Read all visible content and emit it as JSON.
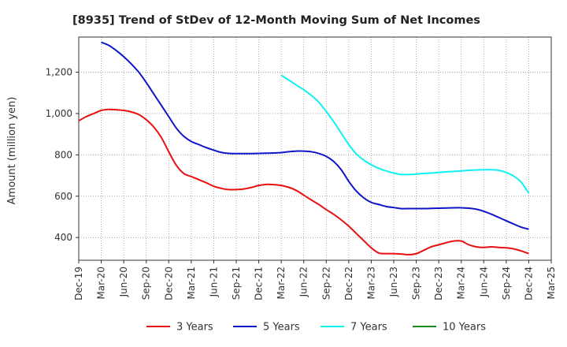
{
  "chart_data": {
    "type": "line",
    "title": "[8935]  Trend of StDev of 12-Month Moving Sum of Net Incomes",
    "xlabel": "",
    "ylabel": "Amount (million yen)",
    "x_ticks": [
      "Dec-19",
      "Mar-20",
      "Jun-20",
      "Sep-20",
      "Dec-20",
      "Mar-21",
      "Jun-21",
      "Sep-21",
      "Dec-21",
      "Mar-22",
      "Jun-22",
      "Sep-22",
      "Dec-22",
      "Mar-23",
      "Jun-23",
      "Sep-23",
      "Dec-23",
      "Mar-24",
      "Jun-24",
      "Sep-24",
      "Dec-24",
      "Mar-25"
    ],
    "y_ticks": [
      400,
      600,
      800,
      1000,
      1200
    ],
    "y_tick_labels": [
      "400",
      "600",
      "800",
      "1,000",
      "1,200"
    ],
    "ylim": [
      290,
      1370
    ],
    "grid": true,
    "legend_position": "bottom",
    "series": [
      {
        "name": "3 Years",
        "color": "#e81010",
        "x": [
          "2019-12",
          "2020-01",
          "2020-02",
          "2020-03",
          "2020-04",
          "2020-05",
          "2020-06",
          "2020-07",
          "2020-08",
          "2020-09",
          "2020-10",
          "2020-11",
          "2020-12",
          "2021-01",
          "2021-02",
          "2021-03",
          "2021-04",
          "2021-05",
          "2021-06",
          "2021-07",
          "2021-08",
          "2021-09",
          "2021-10",
          "2021-11",
          "2021-12",
          "2022-01",
          "2022-02",
          "2022-03",
          "2022-04",
          "2022-05",
          "2022-06",
          "2022-07",
          "2022-08",
          "2022-09",
          "2022-10",
          "2022-11",
          "2022-12",
          "2023-01",
          "2023-02",
          "2023-03",
          "2023-04",
          "2023-05",
          "2023-06",
          "2023-07",
          "2023-08",
          "2023-09",
          "2023-10",
          "2023-11",
          "2023-12",
          "2024-01",
          "2024-02",
          "2024-03",
          "2024-04",
          "2024-05",
          "2024-06",
          "2024-07",
          "2024-08",
          "2024-09",
          "2024-10",
          "2024-11",
          "2024-12"
        ],
        "values": [
          965,
          985,
          1000,
          1015,
          1020,
          1018,
          1015,
          1008,
          995,
          970,
          935,
          885,
          815,
          750,
          710,
          695,
          680,
          665,
          648,
          638,
          632,
          632,
          635,
          642,
          652,
          657,
          656,
          652,
          643,
          628,
          605,
          582,
          560,
          535,
          512,
          485,
          455,
          420,
          385,
          350,
          325,
          322,
          322,
          320,
          317,
          322,
          338,
          355,
          365,
          375,
          383,
          383,
          365,
          355,
          352,
          355,
          352,
          350,
          345,
          335,
          322
        ],
        "values_note": "estimated"
      },
      {
        "name": "5 Years",
        "color": "#0f14c8",
        "x": [
          "2020-03",
          "2020-04",
          "2020-05",
          "2020-06",
          "2020-07",
          "2020-08",
          "2020-09",
          "2020-10",
          "2020-11",
          "2020-12",
          "2021-01",
          "2021-02",
          "2021-03",
          "2021-04",
          "2021-05",
          "2021-06",
          "2021-07",
          "2021-08",
          "2021-09",
          "2021-10",
          "2021-11",
          "2021-12",
          "2022-01",
          "2022-02",
          "2022-03",
          "2022-04",
          "2022-05",
          "2022-06",
          "2022-07",
          "2022-08",
          "2022-09",
          "2022-10",
          "2022-11",
          "2022-12",
          "2023-01",
          "2023-02",
          "2023-03",
          "2023-04",
          "2023-05",
          "2023-06",
          "2023-07",
          "2023-08",
          "2023-09",
          "2023-10",
          "2023-11",
          "2023-12",
          "2024-01",
          "2024-02",
          "2024-03",
          "2024-04",
          "2024-05",
          "2024-06",
          "2024-07",
          "2024-08",
          "2024-09",
          "2024-10",
          "2024-11",
          "2024-12"
        ],
        "values": [
          1345,
          1330,
          1305,
          1275,
          1240,
          1200,
          1150,
          1095,
          1040,
          985,
          930,
          890,
          865,
          850,
          835,
          823,
          812,
          807,
          806,
          806,
          806,
          807,
          808,
          809,
          811,
          815,
          818,
          818,
          815,
          807,
          793,
          768,
          728,
          672,
          625,
          592,
          570,
          560,
          550,
          545,
          540,
          540,
          540,
          540,
          541,
          542,
          543,
          544,
          544,
          542,
          537,
          527,
          513,
          497,
          481,
          465,
          450,
          440
        ],
        "values_note": "estimated"
      },
      {
        "name": "7 Years",
        "color": "#10f0f0",
        "x": [
          "2022-03",
          "2022-04",
          "2022-05",
          "2022-06",
          "2022-07",
          "2022-08",
          "2022-09",
          "2022-10",
          "2022-11",
          "2022-12",
          "2023-01",
          "2023-02",
          "2023-03",
          "2023-04",
          "2023-05",
          "2023-06",
          "2023-07",
          "2023-08",
          "2023-09",
          "2023-10",
          "2023-11",
          "2023-12",
          "2024-01",
          "2024-02",
          "2024-03",
          "2024-04",
          "2024-05",
          "2024-06",
          "2024-07",
          "2024-08",
          "2024-09",
          "2024-10",
          "2024-11",
          "2024-12"
        ],
        "values": [
          1185,
          1162,
          1138,
          1115,
          1088,
          1055,
          1010,
          960,
          905,
          850,
          805,
          775,
          752,
          735,
          722,
          712,
          705,
          705,
          707,
          710,
          712,
          715,
          718,
          720,
          722,
          725,
          727,
          728,
          728,
          725,
          715,
          697,
          667,
          615
        ],
        "values_note": "estimated"
      },
      {
        "name": "10 Years",
        "color": "#1a8a1a",
        "x": [],
        "values": []
      }
    ]
  }
}
